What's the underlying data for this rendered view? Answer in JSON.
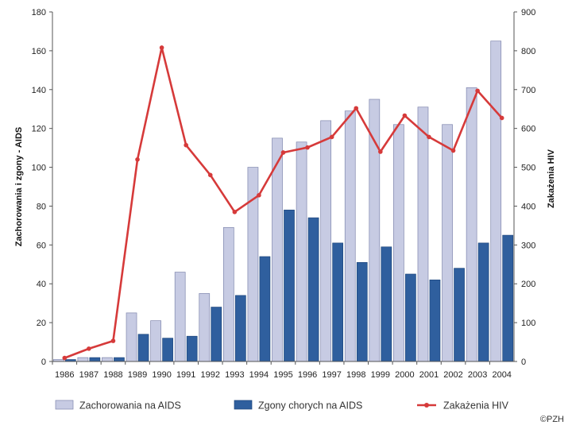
{
  "chart_data": {
    "type": "bar+line",
    "categories": [
      "1986",
      "1987",
      "1988",
      "1989",
      "1990",
      "1991",
      "1992",
      "1993",
      "1994",
      "1995",
      "1996",
      "1997",
      "1998",
      "1999",
      "2000",
      "2001",
      "2002",
      "2003",
      "2004"
    ],
    "series": [
      {
        "name": "Zachorowania na AIDS",
        "type": "bar",
        "axis": "left",
        "color": "#c7cbe3",
        "values": [
          1,
          2,
          2,
          25,
          21,
          46,
          35,
          69,
          100,
          115,
          113,
          124,
          129,
          135,
          122,
          131,
          122,
          141,
          165
        ]
      },
      {
        "name": "Zgony chorych na AIDS",
        "type": "bar",
        "axis": "left",
        "color": "#2f5f9e",
        "values": [
          1,
          2,
          2,
          14,
          12,
          13,
          28,
          34,
          54,
          78,
          74,
          61,
          51,
          59,
          45,
          42,
          48,
          61,
          65
        ]
      },
      {
        "name": "Zakażenia HIV",
        "type": "line",
        "axis": "right",
        "color": "#d63a3a",
        "values": [
          9,
          33,
          53,
          520,
          808,
          557,
          480,
          385,
          428,
          538,
          551,
          578,
          652,
          540,
          633,
          578,
          543,
          697,
          627
        ]
      }
    ],
    "ylabel": "Zachorowania i zgony - AIDS",
    "y2label": "Zakażenia HIV",
    "ylim": [
      0,
      180
    ],
    "y2lim": [
      0,
      900
    ],
    "yticks": [
      0,
      20,
      40,
      60,
      80,
      100,
      120,
      140,
      160,
      180
    ],
    "y2ticks": [
      0,
      100,
      200,
      300,
      400,
      500,
      600,
      700,
      800,
      900
    ],
    "grid": false,
    "legend_position": "bottom"
  },
  "credit": "©PZH"
}
